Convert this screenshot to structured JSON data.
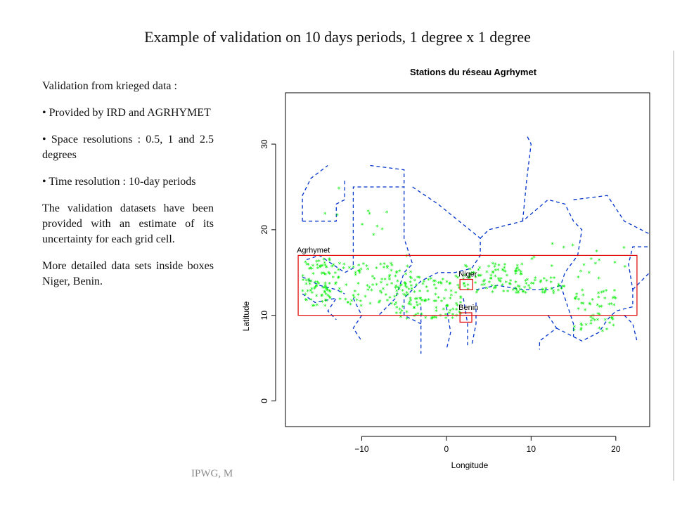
{
  "slide": {
    "title": "Example of validation on 10 days periods, 1 degree x 1 degree",
    "footer": "IPWG, M"
  },
  "text": {
    "intro": "Validation from krieged data :",
    "bullet1": "Provided by IRD and AGRHYMET",
    "bullet2": "Space resolutions : 0.5, 1 and 2.5 degrees",
    "bullet3": "Time resolution : 10-day periods",
    "para1": "The validation datasets have been provided with an estimate of its uncertainty for each grid cell.",
    "para2": "More detailed data sets inside boxes Niger, Benin."
  },
  "chart_data": {
    "type": "scatter",
    "title": "Stations du réseau Agrhymet",
    "xlabel": "Longitude",
    "ylabel": "Latitude",
    "xlim": [
      -19,
      24
    ],
    "ylim": [
      -3,
      36
    ],
    "xticks": [
      -10,
      0,
      10,
      20
    ],
    "yticks": [
      0,
      10,
      20,
      30
    ],
    "xtick_labels": [
      "−10",
      "0",
      "10",
      "20"
    ],
    "ytick_labels": [
      "0",
      "10",
      "20",
      "30"
    ],
    "grid": false,
    "marker_color": "#00ee00",
    "boundary_color": "#0033cc",
    "box_color": "#dd0000",
    "boxes": [
      {
        "label": "Agrhymet",
        "x": [
          -17.5,
          22.5
        ],
        "y": [
          10,
          17
        ]
      },
      {
        "label": "Niger",
        "x": [
          1.6,
          3.1
        ],
        "y": [
          13,
          14.2
        ]
      },
      {
        "label": "Benin",
        "x": [
          1.6,
          3.0
        ],
        "y": [
          9.2,
          10.3
        ]
      }
    ],
    "station_regions": [
      {
        "x": [
          -17,
          -13
        ],
        "y": [
          11,
          16.5
        ],
        "n": 85
      },
      {
        "x": [
          -13,
          -4
        ],
        "y": [
          11,
          16
        ],
        "n": 95
      },
      {
        "x": [
          -6,
          2
        ],
        "y": [
          9.5,
          14.5
        ],
        "n": 110
      },
      {
        "x": [
          2,
          9
        ],
        "y": [
          12.5,
          16
        ],
        "n": 90
      },
      {
        "x": [
          9,
          14
        ],
        "y": [
          12.5,
          14.5
        ],
        "n": 35
      },
      {
        "x": [
          15,
          20
        ],
        "y": [
          8,
          13
        ],
        "n": 55
      },
      {
        "x": [
          -15,
          -4
        ],
        "y": [
          16,
          25
        ],
        "n": 12
      },
      {
        "x": [
          10,
          22
        ],
        "y": [
          14,
          18.5
        ],
        "n": 18
      }
    ]
  }
}
